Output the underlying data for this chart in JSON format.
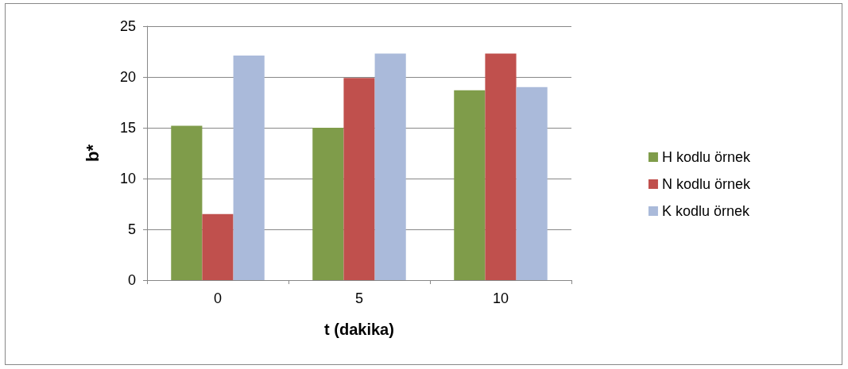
{
  "chart_data": {
    "type": "bar",
    "xlabel": "t (dakika)",
    "ylabel": "b*",
    "categories": [
      "0",
      "5",
      "10"
    ],
    "series": [
      {
        "name": "H kodlu örnek",
        "color": "#7f9c4a",
        "values": [
          15.2,
          15.0,
          18.7
        ]
      },
      {
        "name": "N kodlu örnek",
        "color": "#c0504d",
        "values": [
          6.5,
          19.9,
          22.3
        ]
      },
      {
        "name": "K kodlu örnek",
        "color": "#aabada",
        "values": [
          22.1,
          22.3,
          19.0
        ]
      }
    ],
    "ylim": [
      0,
      25
    ],
    "yticks": [
      0,
      5,
      10,
      15,
      20,
      25
    ],
    "grid": "y",
    "legend": "right"
  }
}
